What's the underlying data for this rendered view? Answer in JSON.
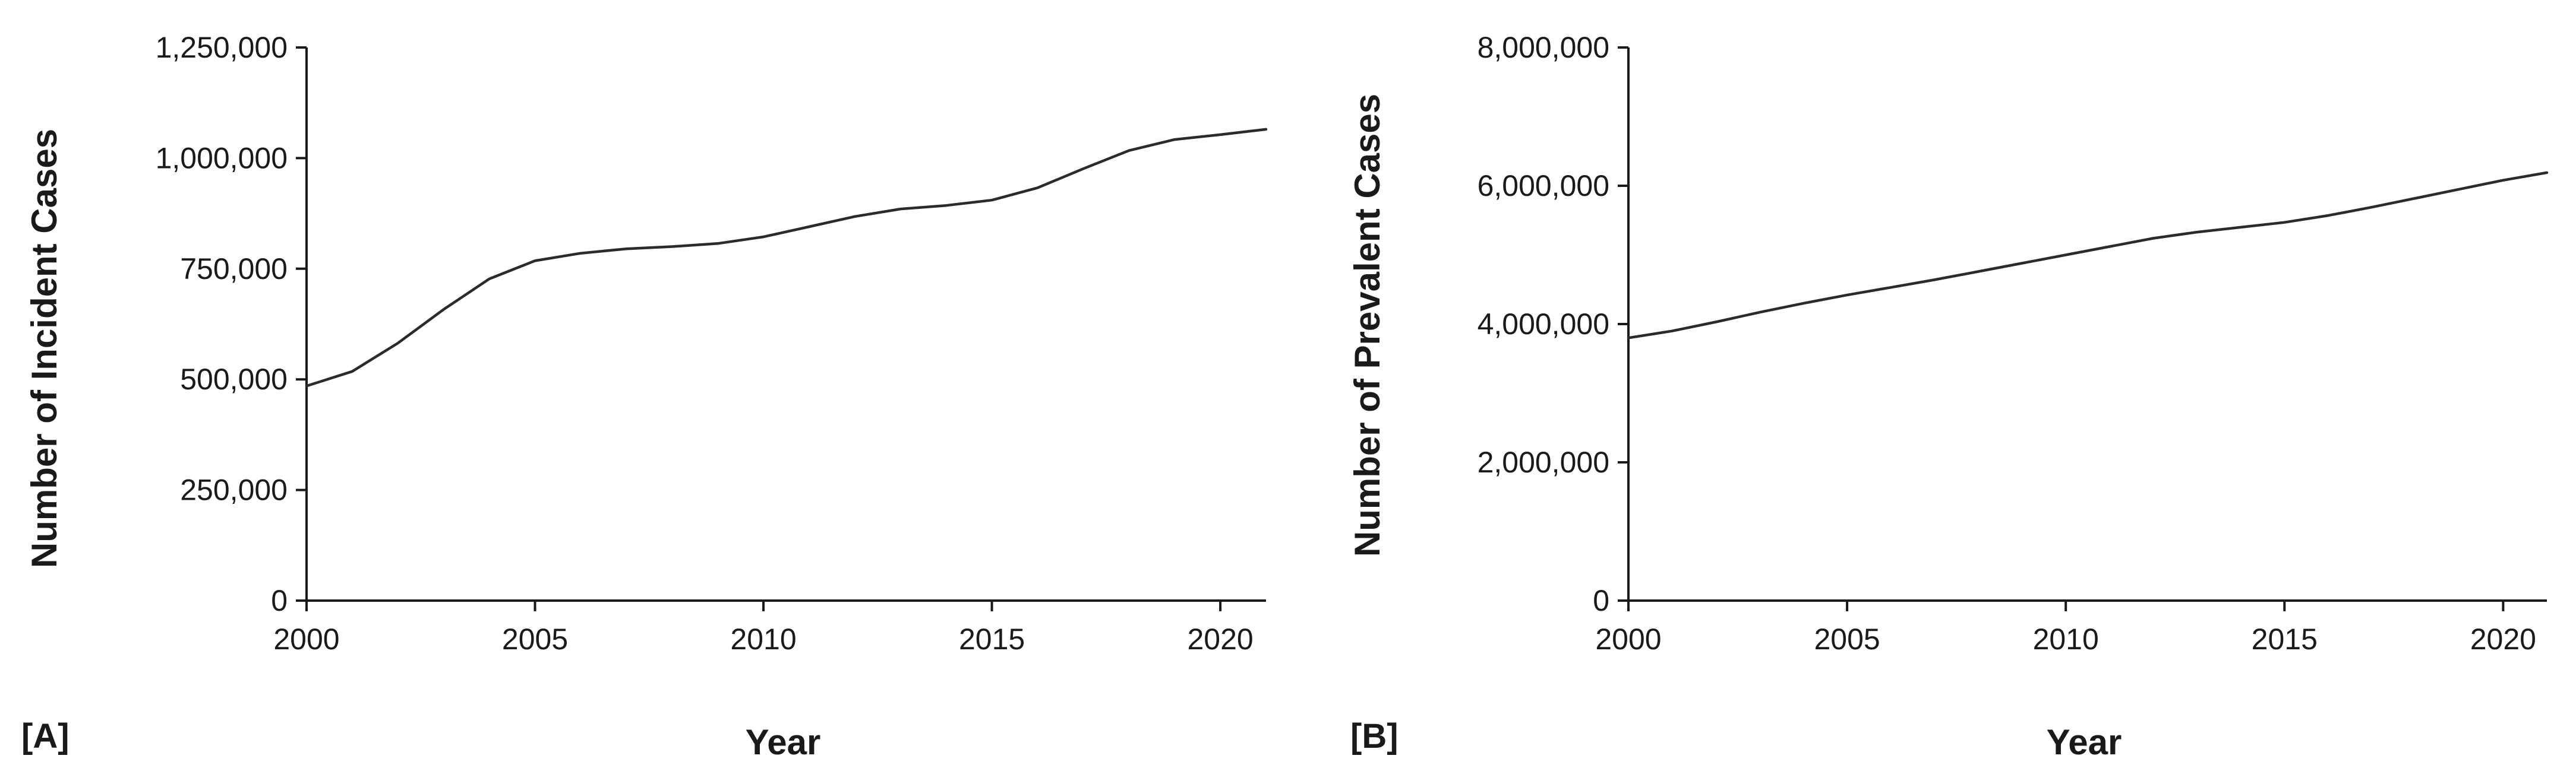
{
  "chart_data": [
    {
      "type": "line",
      "panel_label": "[A]",
      "title": "",
      "xlabel": "Year",
      "ylabel": "Number of Incident Cases",
      "xlim": [
        2000,
        2021
      ],
      "ylim": [
        0,
        1250000
      ],
      "x_ticks": [
        2000,
        2005,
        2010,
        2015,
        2020
      ],
      "x_tick_labels": [
        "2000",
        "2005",
        "2010",
        "2015",
        "2020"
      ],
      "y_ticks": [
        0,
        250000,
        500000,
        750000,
        1000000,
        1250000
      ],
      "y_tick_labels": [
        "0",
        "250,000",
        "500,000",
        "750,000",
        "1,000,000",
        "1,250,000"
      ],
      "grid": false,
      "legend": "none",
      "series": [
        {
          "x": [
            2000,
            2001,
            2002,
            2003,
            2004,
            2005,
            2006,
            2007,
            2008,
            2009,
            2010,
            2011,
            2012,
            2013,
            2014,
            2015,
            2016,
            2017,
            2018,
            2019,
            2020,
            2021
          ],
          "values": [
            485000,
            518000,
            582000,
            658000,
            727000,
            768000,
            785000,
            795000,
            800000,
            807000,
            822000,
            845000,
            868000,
            885000,
            893000,
            905000,
            933000,
            976000,
            1017000,
            1042000,
            1053000,
            1065000
          ]
        }
      ]
    },
    {
      "type": "line",
      "panel_label": "[B]",
      "title": "",
      "xlabel": "Year",
      "ylabel": "Number of Prevalent Cases",
      "xlim": [
        2000,
        2021
      ],
      "ylim": [
        0,
        8000000
      ],
      "x_ticks": [
        2000,
        2005,
        2010,
        2015,
        2020
      ],
      "x_tick_labels": [
        "2000",
        "2005",
        "2010",
        "2015",
        "2020"
      ],
      "y_ticks": [
        0,
        2000000,
        4000000,
        6000000,
        8000000
      ],
      "y_tick_labels": [
        "0",
        "2,000,000",
        "4,000,000",
        "6,000,000",
        "8,000,000"
      ],
      "grid": false,
      "legend": "none",
      "series": [
        {
          "x": [
            2000,
            2001,
            2002,
            2003,
            2004,
            2005,
            2006,
            2007,
            2008,
            2009,
            2010,
            2011,
            2012,
            2013,
            2014,
            2015,
            2016,
            2017,
            2018,
            2019,
            2020,
            2021
          ],
          "values": [
            3800000,
            3900000,
            4030000,
            4170000,
            4300000,
            4420000,
            4530000,
            4640000,
            4760000,
            4880000,
            5000000,
            5120000,
            5240000,
            5330000,
            5400000,
            5470000,
            5570000,
            5690000,
            5820000,
            5950000,
            6080000,
            6190000
          ]
        }
      ]
    }
  ]
}
